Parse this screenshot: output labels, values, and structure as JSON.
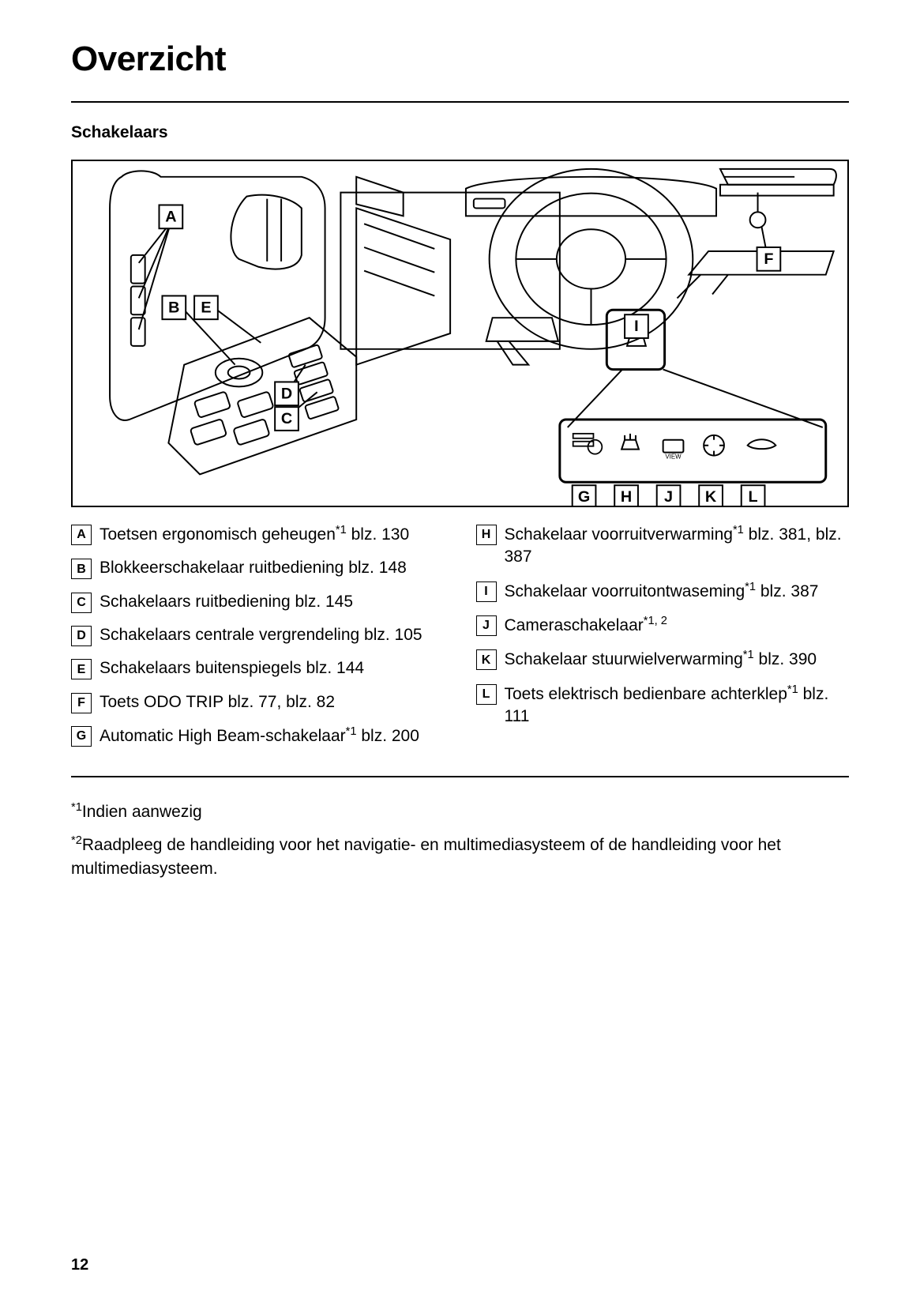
{
  "page": {
    "title": "Overzicht",
    "section": "Schakelaars",
    "page_number": "12"
  },
  "diagram": {
    "callouts": [
      "A",
      "B",
      "C",
      "D",
      "E",
      "F",
      "G",
      "H",
      "I",
      "J",
      "K",
      "L"
    ]
  },
  "legend": {
    "left": [
      {
        "letter": "A",
        "text": "Toetsen ergonomisch geheugen",
        "sup": "*1",
        "page_ref": "blz. 130"
      },
      {
        "letter": "B",
        "text": "Blokkeerschakelaar ruitbediening",
        "sup": "",
        "page_ref": "blz. 148"
      },
      {
        "letter": "C",
        "text": "Schakelaars ruitbediening",
        "sup": "",
        "page_ref": "blz. 145"
      },
      {
        "letter": "D",
        "text": "Schakelaars centrale vergrendeling",
        "sup": "",
        "page_ref": "blz. 105"
      },
      {
        "letter": "E",
        "text": "Schakelaars buitenspiegels",
        "sup": "",
        "page_ref": "blz. 144"
      },
      {
        "letter": "F",
        "text": "Toets ODO TRIP",
        "sup": "",
        "page_ref": "blz. 77, blz. 82"
      },
      {
        "letter": "G",
        "text": "Automatic High Beam-schakelaar",
        "sup": "*1",
        "page_ref": "blz. 200"
      }
    ],
    "right": [
      {
        "letter": "H",
        "text": "Schakelaar voorruitverwarming",
        "sup": "*1",
        "page_ref": "blz. 381, blz. 387"
      },
      {
        "letter": "I",
        "text": "Schakelaar voorruitontwaseming",
        "sup": "*1",
        "page_ref": "blz. 387"
      },
      {
        "letter": "J",
        "text": "Cameraschakelaar",
        "sup": "*1, 2",
        "page_ref": ""
      },
      {
        "letter": "K",
        "text": "Schakelaar stuurwielverwarming",
        "sup": "*1",
        "page_ref": "blz. 390"
      },
      {
        "letter": "L",
        "text": "Toets elektrisch bedienbare achterklep",
        "sup": "*1",
        "page_ref": "blz. 111"
      }
    ]
  },
  "footnotes": {
    "f1": {
      "marker": "*1",
      "text": "Indien aanwezig"
    },
    "f2": {
      "marker": "*2",
      "text": "Raadpleeg de handleiding voor het navigatie- en multimediasysteem of de handleiding voor het multimediasysteem."
    }
  },
  "colors": {
    "text": "#000000",
    "background": "#ffffff",
    "rule": "#000000"
  }
}
